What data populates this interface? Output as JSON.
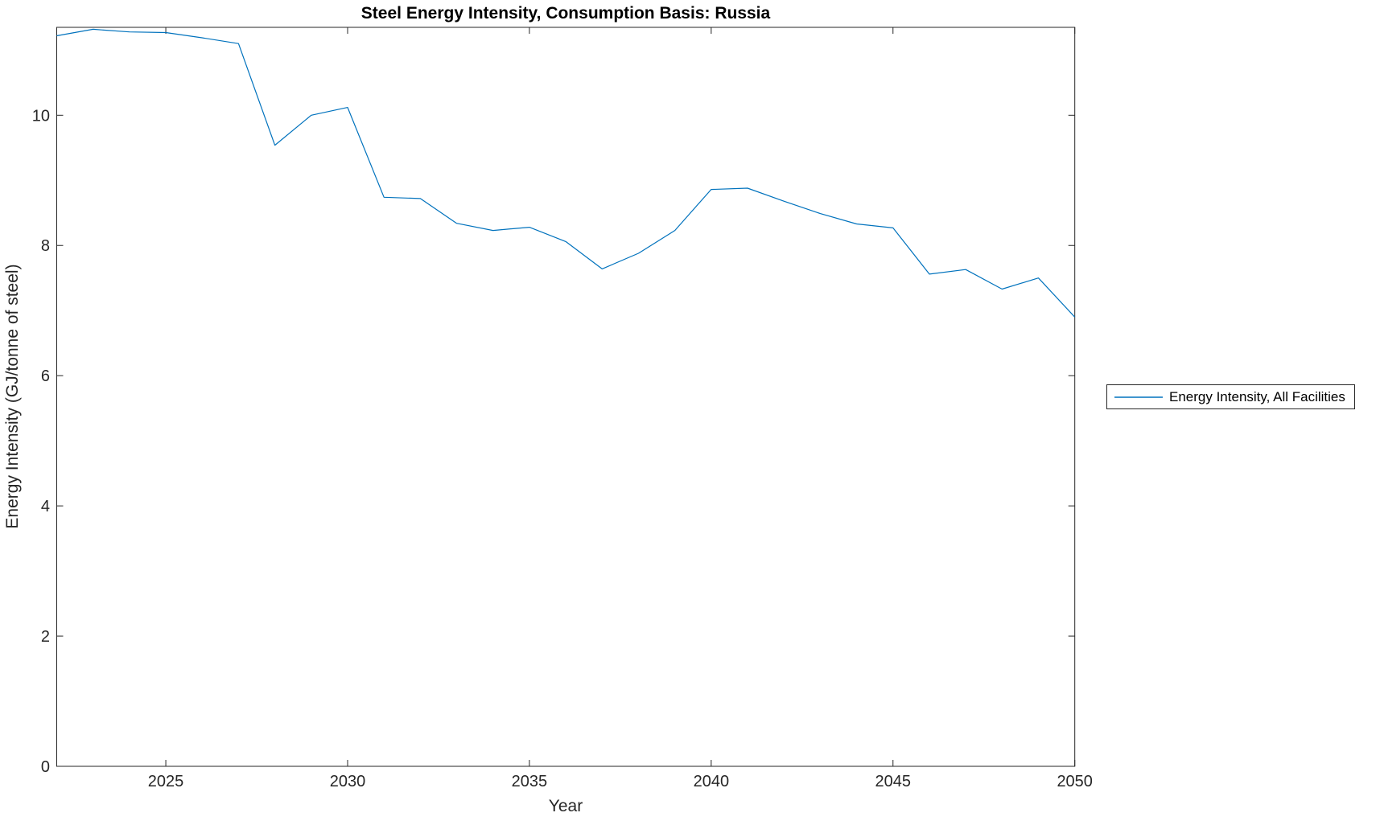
{
  "chart_data": {
    "type": "line",
    "title": "Steel Energy Intensity, Consumption Basis: Russia",
    "xlabel": "Year",
    "ylabel": "Energy Intensity (GJ/tonne of steel)",
    "xlim": [
      2022,
      2050
    ],
    "ylim": [
      0,
      11.35
    ],
    "x_ticks": [
      2025,
      2030,
      2035,
      2040,
      2045,
      2050
    ],
    "y_ticks": [
      0,
      2,
      4,
      6,
      8,
      10
    ],
    "grid": false,
    "box": true,
    "axis_color": "#262626",
    "legend": {
      "position": "outside-right",
      "entries": [
        {
          "label": "Energy Intensity, All Facilities",
          "color": "#0072BD"
        }
      ]
    },
    "series": [
      {
        "name": "Energy Intensity, All Facilities",
        "color": "#0072BD",
        "x": [
          2022,
          2023,
          2024,
          2025,
          2026,
          2027,
          2028,
          2029,
          2030,
          2031,
          2032,
          2033,
          2034,
          2035,
          2036,
          2037,
          2038,
          2039,
          2040,
          2041,
          2042,
          2043,
          2044,
          2045,
          2046,
          2047,
          2048,
          2049,
          2050
        ],
        "values": [
          11.22,
          11.32,
          11.28,
          11.27,
          11.19,
          11.1,
          9.54,
          10.0,
          10.12,
          8.74,
          8.72,
          8.34,
          8.23,
          8.28,
          8.06,
          7.64,
          7.88,
          8.23,
          8.86,
          8.88,
          8.68,
          8.49,
          8.33,
          8.27,
          7.56,
          7.63,
          7.33,
          7.5,
          6.9
        ]
      }
    ]
  }
}
